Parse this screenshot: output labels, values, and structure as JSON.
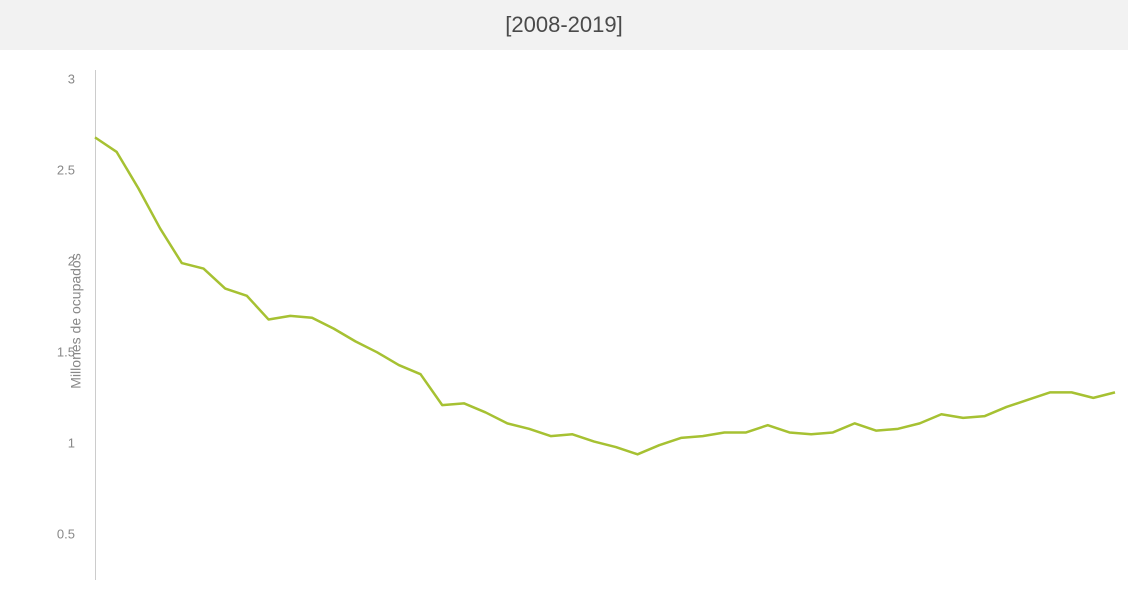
{
  "title": "[2008-2019]",
  "chart": {
    "type": "line",
    "y_label": "Millones de ocupados",
    "y_ticks": [
      0.5,
      1,
      1.5,
      2,
      2.5,
      3
    ],
    "ylim": [
      0.25,
      3.05
    ],
    "xlim": [
      0,
      47
    ],
    "line_color": "#a6c132",
    "line_width": 2.5,
    "title_bg_color": "#f2f2f2",
    "title_color": "#4a4a4a",
    "axis_label_color": "#888888",
    "background_color": "#ffffff",
    "axis_line_color": "#cccccc",
    "title_fontsize": 22,
    "label_fontsize": 14,
    "tick_fontsize": 13,
    "data": [
      2.68,
      2.6,
      2.4,
      2.18,
      1.99,
      1.96,
      1.85,
      1.81,
      1.68,
      1.7,
      1.69,
      1.63,
      1.56,
      1.5,
      1.43,
      1.38,
      1.21,
      1.22,
      1.17,
      1.11,
      1.08,
      1.04,
      1.05,
      1.01,
      0.98,
      0.94,
      0.99,
      1.03,
      1.04,
      1.06,
      1.06,
      1.1,
      1.06,
      1.05,
      1.06,
      1.11,
      1.07,
      1.08,
      1.11,
      1.16,
      1.14,
      1.15,
      1.2,
      1.24,
      1.28,
      1.28,
      1.25,
      1.28
    ]
  }
}
